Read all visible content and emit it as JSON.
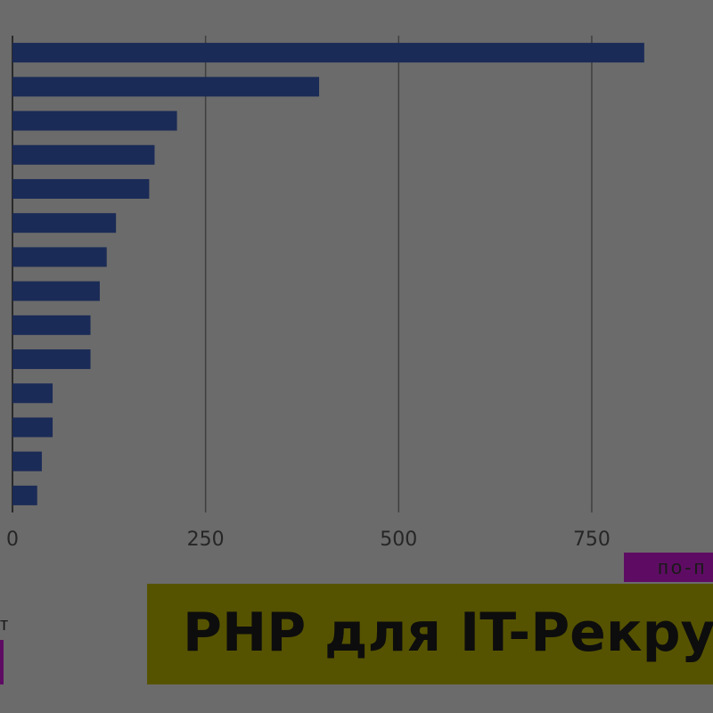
{
  "chart_data": {
    "type": "hbar",
    "categories": [
      null,
      null,
      null,
      null,
      null,
      null,
      null,
      null,
      null,
      null,
      null,
      null,
      null,
      null
    ],
    "values": [
      818,
      397,
      213,
      184,
      177,
      134,
      122,
      113,
      101,
      101,
      52,
      52,
      38,
      32
    ],
    "color": "#1b2b57",
    "xlim": [
      0,
      907
    ],
    "xticks": [
      0,
      250,
      500,
      750
    ],
    "grid": true
  },
  "overlay": {
    "tag": "по-п",
    "banner_title": "PHP для IT-Рекрут",
    "side_text": "т"
  }
}
